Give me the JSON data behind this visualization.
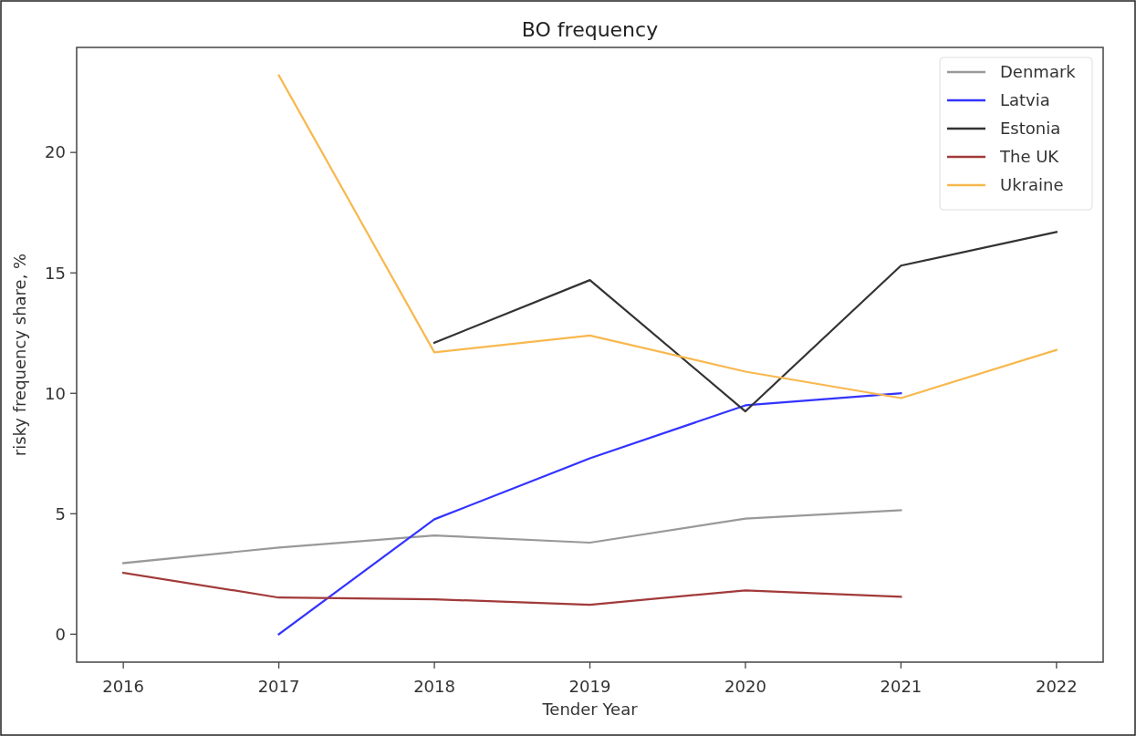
{
  "chart_data": {
    "type": "line",
    "title": "BO frequency",
    "xlabel": "Tender Year",
    "ylabel": "risky frequency share, %",
    "x": [
      2016,
      2017,
      2018,
      2019,
      2020,
      2021,
      2022
    ],
    "series": [
      {
        "name": "Denmark",
        "color": "#999999",
        "values": [
          2.95,
          3.6,
          4.1,
          3.8,
          4.8,
          5.15,
          null
        ]
      },
      {
        "name": "Latvia",
        "color": "#3333ff",
        "values": [
          null,
          0,
          4.77,
          7.3,
          9.5,
          10.0,
          null
        ]
      },
      {
        "name": "Estonia",
        "color": "#333333",
        "values": [
          null,
          null,
          12.1,
          14.7,
          9.25,
          15.3,
          16.7
        ]
      },
      {
        "name": "The UK",
        "color": "#a23a3a",
        "values": [
          2.55,
          1.52,
          1.45,
          1.22,
          1.82,
          1.55,
          null
        ]
      },
      {
        "name": "Ukraine",
        "color": "#f8b84e",
        "values": [
          null,
          23.2,
          11.7,
          12.4,
          10.9,
          9.8,
          11.8
        ]
      }
    ],
    "xlim": [
      2015.7,
      2022.3
    ],
    "ylim": [
      -1.16,
      24.36
    ],
    "xticks": [
      2016,
      2017,
      2018,
      2019,
      2020,
      2021,
      2022
    ],
    "yticks": [
      0,
      5,
      10,
      15,
      20
    ],
    "grid": false,
    "legend": "top right",
    "marker": "none",
    "line_style": "solid"
  }
}
